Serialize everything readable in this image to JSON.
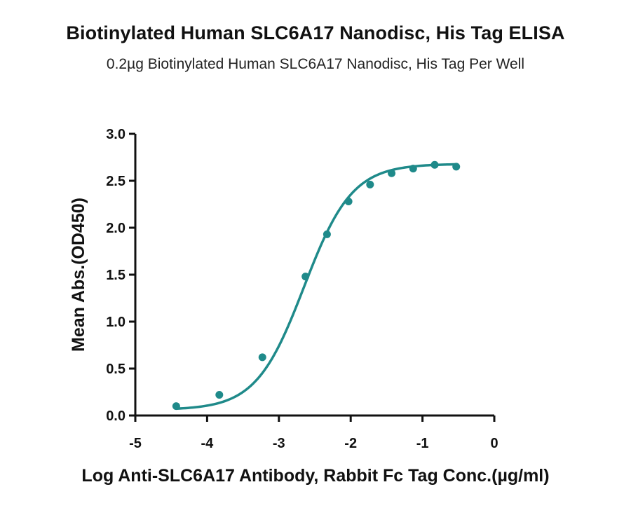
{
  "chart_data": {
    "type": "scatter",
    "title": "Biotinylated Human SLC6A17 Nanodisc, His Tag ELISA",
    "subtitle": "0.2µg Biotinylated Human SLC6A17 Nanodisc, His Tag Per Well",
    "xlabel": "Log Anti-SLC6A17 Antibody, Rabbit Fc Tag Conc.(µg/ml)",
    "ylabel": "Mean Abs.(OD450)",
    "xlim": [
      -5,
      0
    ],
    "ylim": [
      0,
      3.0
    ],
    "x_ticks": [
      "-5",
      "-4",
      "-3",
      "-2",
      "-1",
      "0"
    ],
    "y_ticks": [
      "0.0",
      "0.5",
      "1.0",
      "1.5",
      "2.0",
      "2.5",
      "3.0"
    ],
    "grid": false,
    "color": "#1f8a8a",
    "series": [
      {
        "x": [
          -4.43,
          -3.83,
          -3.23,
          -2.63,
          -2.33,
          -2.03,
          -1.73,
          -1.43,
          -1.13,
          -0.83,
          -0.53
        ],
        "y": [
          0.1,
          0.22,
          0.62,
          1.48,
          1.93,
          2.28,
          2.46,
          2.58,
          2.63,
          2.67,
          2.65
        ]
      }
    ],
    "fit_curve": {
      "model": "4PL",
      "bottom": 0.06,
      "top": 2.68,
      "logEC50": -2.65,
      "hill": 1.3
    }
  }
}
